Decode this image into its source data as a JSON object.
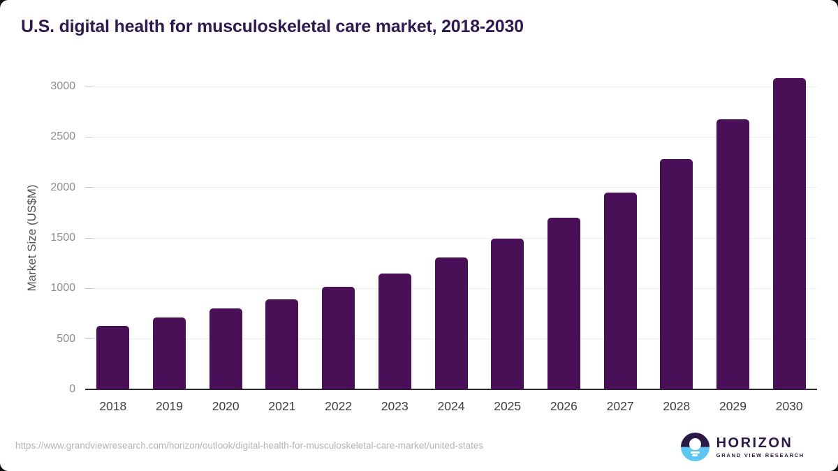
{
  "title": "U.S. digital health for musculoskeletal care market, 2018-2030",
  "chart_data": {
    "type": "bar",
    "title": "U.S. digital health for musculoskeletal care market, 2018-2030",
    "categories": [
      "2018",
      "2019",
      "2020",
      "2021",
      "2022",
      "2023",
      "2024",
      "2025",
      "2026",
      "2027",
      "2028",
      "2029",
      "2030"
    ],
    "values": [
      630,
      710,
      800,
      895,
      1015,
      1145,
      1305,
      1490,
      1700,
      1950,
      2280,
      2675,
      3085
    ],
    "xlabel": "",
    "ylabel": "Market Size (US$M)",
    "yticks": [
      0,
      500,
      1000,
      1500,
      2000,
      2500,
      3000
    ],
    "ylim": [
      0,
      3000
    ],
    "grid": true,
    "legend": false,
    "bar_color": "#491058",
    "gridline_color": "#ededed",
    "axis_line_color": "#2b2b2b"
  },
  "footer": {
    "source_url": "https://www.grandviewresearch.com/horizon/outlook/digital-health-for-musculoskeletal-care-market/united-states",
    "logo_name": "HORIZON",
    "logo_subtitle": "GRAND VIEW RESEARCH"
  },
  "colors": {
    "title_text": "#2e1a4e",
    "bar": "#491058",
    "logo_purple": "#2a1a45",
    "logo_blue": "#5ec6f2",
    "y_tick_text": "#8c8c8c",
    "x_tick_text": "#3f3f3f",
    "source_text": "#b5b5b5"
  }
}
